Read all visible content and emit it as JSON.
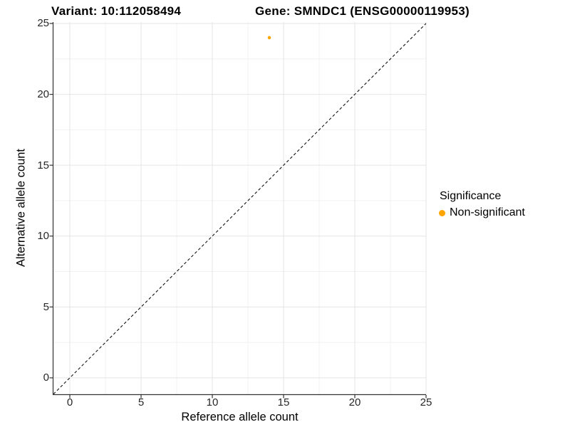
{
  "chart_data": {
    "type": "scatter",
    "title_left": "Variant: 10:112058494",
    "title_right": "Gene: SMNDC1 (ENSG00000119953)",
    "xlabel": "Reference allele count",
    "ylabel": "Alternative allele count",
    "xlim": [
      -1.15,
      25.0
    ],
    "ylim": [
      -1.16,
      25.1
    ],
    "x_ticks": [
      0,
      5,
      10,
      15,
      20,
      25
    ],
    "y_ticks": [
      0,
      5,
      10,
      15,
      20,
      25
    ],
    "x_minor_ticks": [
      2.5,
      7.5,
      12.5,
      17.5,
      22.5
    ],
    "y_minor_ticks": [
      2.5,
      7.5,
      12.5,
      17.5,
      22.5
    ],
    "grid": true,
    "series": [
      {
        "name": "Non-significant",
        "color": "#FFA500",
        "points": [
          {
            "x": 14,
            "y": 24
          }
        ]
      }
    ],
    "abline": {
      "slope": 1,
      "intercept": 0,
      "line_style": "dashed",
      "color": "#111111"
    },
    "legend": {
      "title": "Significance",
      "position": "right",
      "entries": [
        {
          "label": "Non-significant",
          "color": "#FFA500"
        }
      ]
    }
  },
  "colors": {
    "background": "#FFFFFF",
    "grid_major": "#E5E5E5",
    "grid_minor": "#F1F1F1",
    "axis_line": "#333333",
    "tick_mark": "#333333",
    "tick_label": "#262626"
  }
}
